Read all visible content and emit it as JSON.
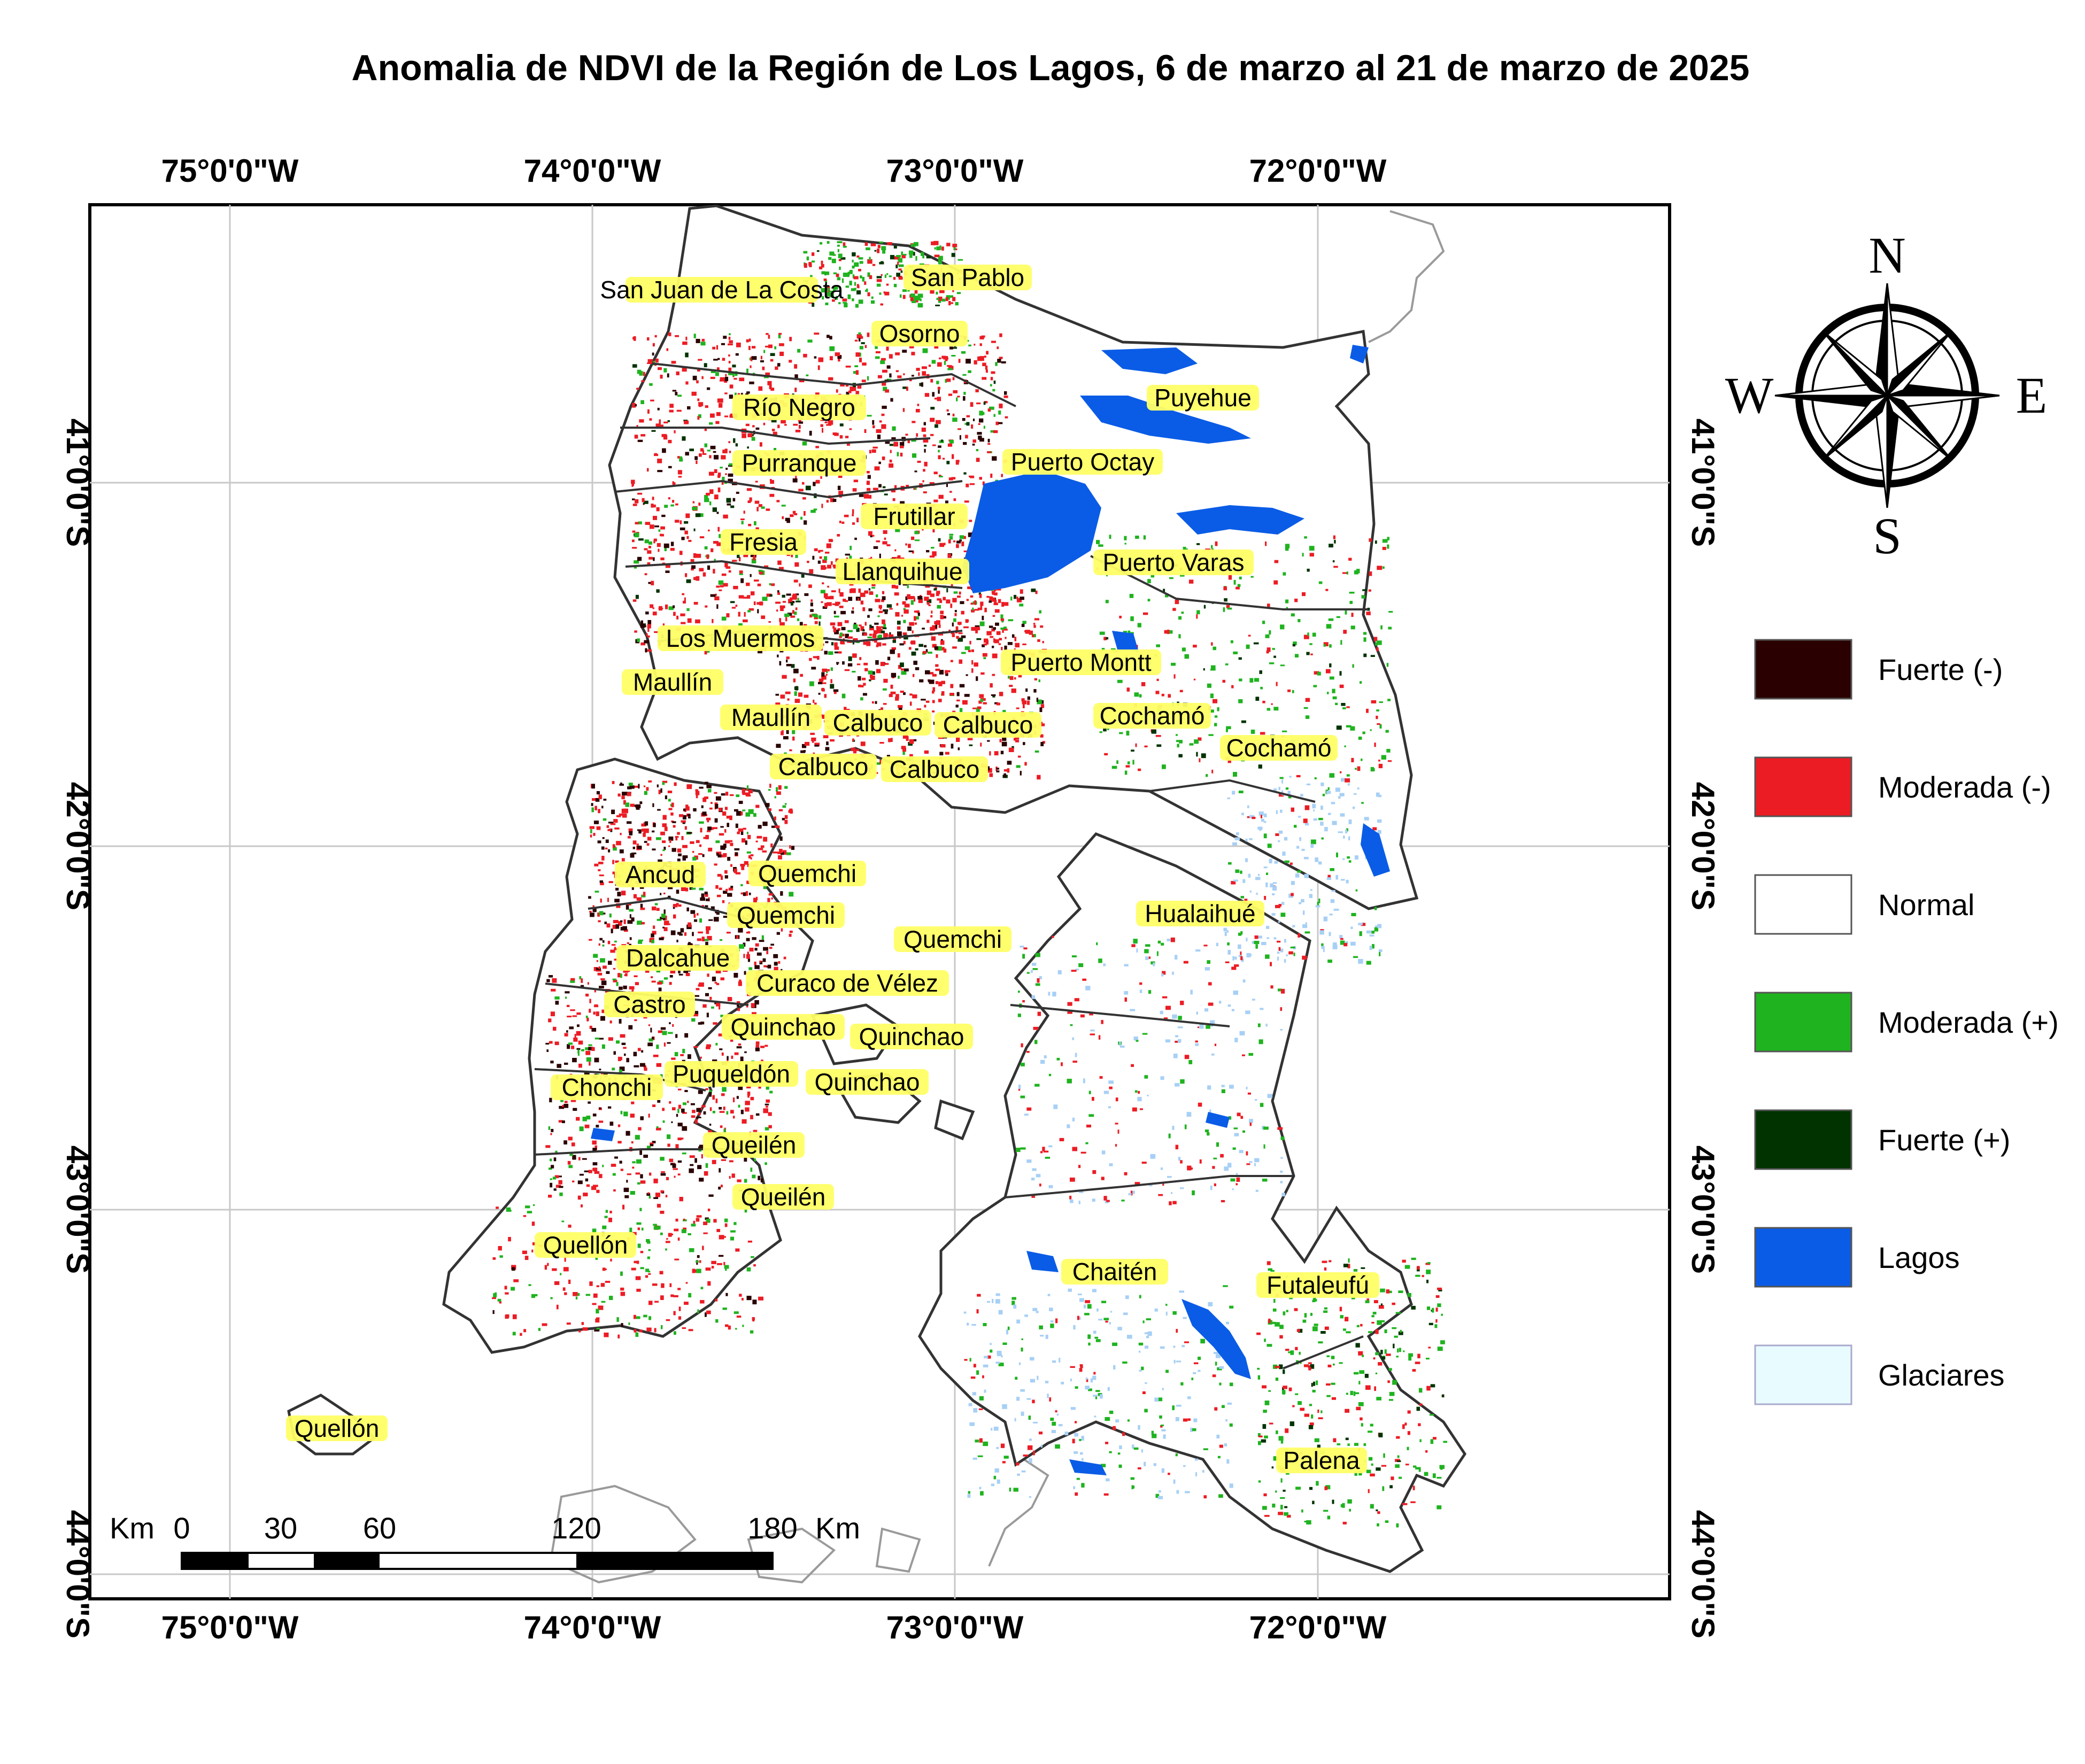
{
  "title": "Anomalia de NDVI de la Región de Los Lagos, 6 de marzo al 21 de marzo de 2025",
  "longitude_labels": [
    "75°0'0\"W",
    "74°0'0\"W",
    "73°0'0\"W",
    "72°0'0\"W"
  ],
  "latitude_labels": [
    "41°0'0\"S",
    "42°0'0\"S",
    "43°0'0\"S",
    "44°0'0\"S"
  ],
  "compass": {
    "north": "N",
    "south": "S",
    "east": "E",
    "west": "W"
  },
  "legend": [
    {
      "label": "Fuerte (-)",
      "color": "#2a0000"
    },
    {
      "label": "Moderada (-)",
      "color": "#ec1c24"
    },
    {
      "label": "Normal",
      "color": "#ffffff"
    },
    {
      "label": "Moderada (+)",
      "color": "#1fb31f"
    },
    {
      "label": "Fuerte (+)",
      "color": "#003300"
    },
    {
      "label": "Lagos",
      "color": "#0a5ce6"
    },
    {
      "label": "Glaciares",
      "color": "#e8fbff"
    }
  ],
  "scale_bar": {
    "unit_left": "Km",
    "ticks": [
      "0",
      "30",
      "60",
      "120",
      "180"
    ],
    "unit_right": "Km"
  },
  "places": [
    "San Juan de La Costa",
    "San Pablo",
    "Osorno",
    "Puyehue",
    "Río Negro",
    "Purranque",
    "Puerto Octay",
    "Frutillar",
    "Fresia",
    "Puerto Varas",
    "Llanquihue",
    "Los Muermos",
    "Puerto Montt",
    "Maullín",
    "Maullín",
    "Calbuco",
    "Calbuco",
    "Cochamó",
    "Cochamó",
    "Calbuco",
    "Calbuco",
    "Ancud",
    "Quemchi",
    "Quemchi",
    "Hualaihué",
    "Quemchi",
    "Dalcahue",
    "Curaco de Vélez",
    "Castro",
    "Quinchao",
    "Quinchao",
    "Puqueldón",
    "Quinchao",
    "Chonchi",
    "Queilén",
    "Queilén",
    "Quellón",
    "Chaitén",
    "Futaleufú",
    "Palena",
    "Quellón"
  ]
}
